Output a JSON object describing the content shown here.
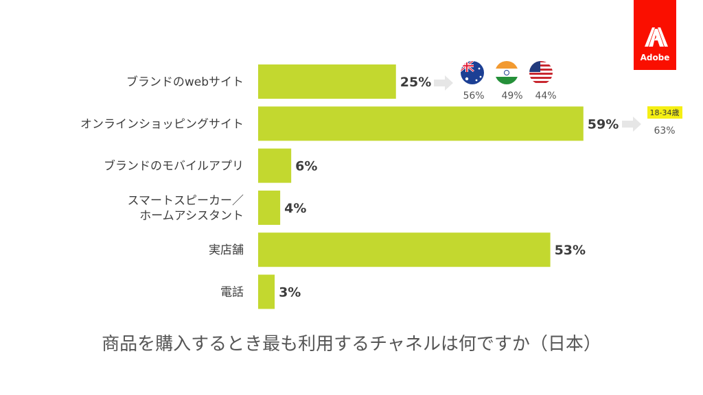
{
  "caption": "商品を購入するとき最も利用するチャネルは何ですか（日本）",
  "brand": {
    "logo_text": "Adobe",
    "logo_color": "#fa0f00"
  },
  "colors": {
    "bar": "#c3d82f",
    "text": "#3c3c3c",
    "arrow": "#e6e6e6",
    "age_highlight": "#f5ef14"
  },
  "chart_data": {
    "type": "bar",
    "orientation": "horizontal",
    "categories": [
      [
        "ブランドのwebサイト"
      ],
      [
        "オンラインショッピングサイト"
      ],
      [
        "ブランドのモバイルアプリ"
      ],
      [
        "スマートスピーカー／",
        "ホームアシスタント"
      ],
      [
        "実店舗"
      ],
      [
        "電話"
      ]
    ],
    "values": [
      25,
      59,
      6,
      4,
      53,
      3
    ],
    "value_labels": [
      "25%",
      "59%",
      "6%",
      "4%",
      "53%",
      "3%"
    ],
    "xlim": [
      0,
      100
    ],
    "grid": false,
    "legend": "none"
  },
  "annotations": {
    "brand_website_countries": [
      {
        "flag": "australia-flag",
        "value": "56%"
      },
      {
        "flag": "india-flag",
        "value": "49%"
      },
      {
        "flag": "usa-flag",
        "value": "44%"
      }
    ],
    "online_shopping_age": {
      "age_label": "18-34歳",
      "value": "63%"
    }
  }
}
